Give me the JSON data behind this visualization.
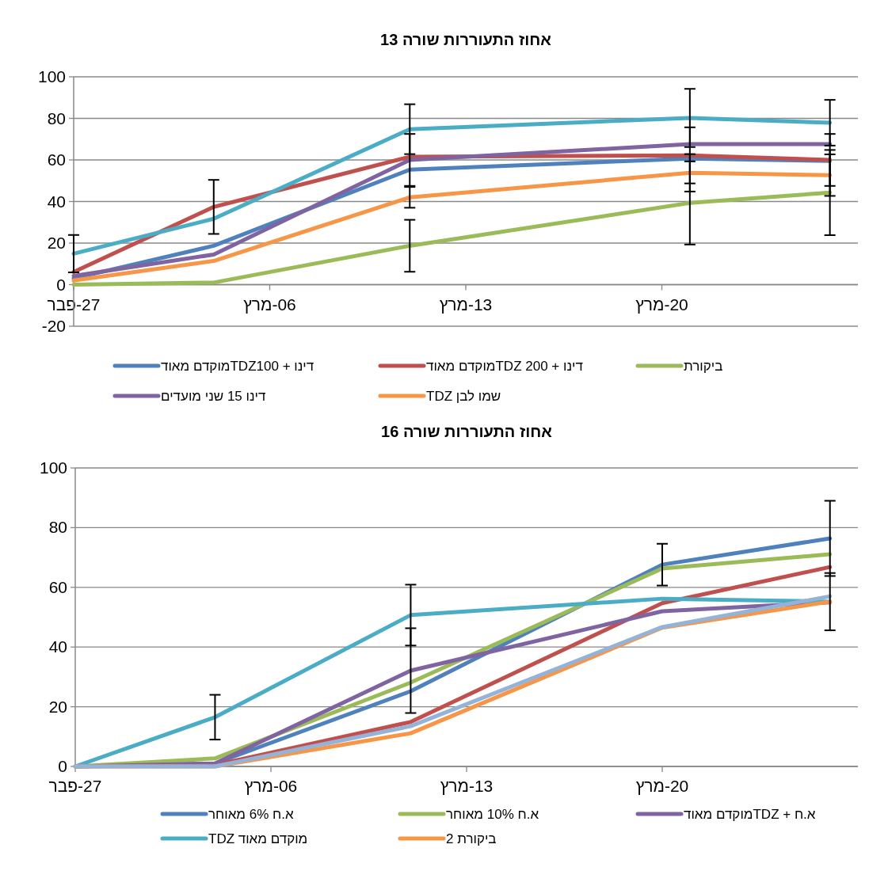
{
  "chart_data": [
    {
      "type": "line",
      "title": "אחוז התעוררות שורה 13",
      "x": [
        "--02-27",
        "--03-04",
        "--03-11",
        "--03-21",
        "--03-26"
      ],
      "xlim": [
        "--02-27",
        "--03-27"
      ],
      "xticks": [
        {
          "value": "--02-27",
          "label": "27-פבר"
        },
        {
          "value": "--03-06",
          "label": "06-מרץ"
        },
        {
          "value": "--03-13",
          "label": "13-מרץ"
        },
        {
          "value": "--03-20",
          "label": "20-מרץ"
        }
      ],
      "ylim": [
        -20,
        100
      ],
      "yticks": [
        -20,
        0,
        20,
        40,
        60,
        80,
        100
      ],
      "grid": "y",
      "legend": "bottom",
      "series": [
        {
          "name": "דינו + TDZ100מוקדם מאוד",
          "color": "#4f81bd",
          "values": [
            3,
            18.7,
            55.3,
            60.7,
            59.5
          ]
        },
        {
          "name": "דינו + TDZ 200מוקדם מאוד",
          "color": "#c0504d",
          "values": [
            6.1,
            37.4,
            61.5,
            62.2,
            60
          ],
          "errors": [
            null,
            13,
            null,
            13.5,
            12.5
          ]
        },
        {
          "name": "ביקורת",
          "color": "#9bbb59",
          "values": [
            0,
            1,
            18.7,
            39.3,
            44.3
          ],
          "errors": [
            null,
            null,
            12.5,
            20,
            20.5
          ]
        },
        {
          "name": "דינו 15 שני מועדים",
          "color": "#8064a2",
          "values": [
            4.2,
            14.5,
            60,
            67.6,
            67.6
          ],
          "errors": [
            null,
            null,
            12.5,
            null,
            null
          ]
        },
        {
          "color": "#4bacc6",
          "values": [
            14.9,
            31.7,
            74.8,
            80.2,
            77.9
          ],
          "errors": [
            9,
            null,
            12,
            14,
            11
          ]
        },
        {
          "name": "שמו לבן TDZ",
          "color": "#f79646",
          "values": [
            2,
            11.4,
            42,
            53.8,
            52.7
          ],
          "errors": [
            null,
            null,
            5,
            9,
            10
          ]
        }
      ]
    },
    {
      "type": "line",
      "title": "אחוז התעוררות שורה 16",
      "x": [
        "--02-27",
        "--03-04",
        "--03-11",
        "--03-20",
        "--03-26"
      ],
      "xlim": [
        "--02-27",
        "--03-27"
      ],
      "xticks": [
        {
          "value": "--02-27",
          "label": "27-פבר"
        },
        {
          "value": "--03-06",
          "label": "06-מרץ"
        },
        {
          "value": "--03-13",
          "label": "13-מרץ"
        },
        {
          "value": "--03-20",
          "label": "20-מרץ"
        }
      ],
      "ylim": [
        0,
        100
      ],
      "yticks": [
        0,
        20,
        40,
        60,
        80,
        100
      ],
      "grid": "y",
      "legend": "bottom",
      "series": [
        {
          "name": "א.ח 6% מאוחר",
          "color": "#4f81bd",
          "values": [
            0,
            1,
            25.2,
            67.6,
            76.4
          ],
          "errors": [
            null,
            null,
            null,
            7,
            12.6
          ]
        },
        {
          "color": "#c0504d",
          "values": [
            0,
            0.5,
            14.9,
            54.7,
            66.8
          ]
        },
        {
          "name": "א.ח 10% מאוחר",
          "color": "#9bbb59",
          "values": [
            0,
            2.7,
            28.1,
            66.3,
            71.1
          ]
        },
        {
          "name": "א.ח + TDZמוקדם מאוד",
          "color": "#8064a2",
          "values": [
            0,
            1,
            32.1,
            52,
            55
          ],
          "errors": [
            null,
            null,
            14.2,
            null,
            null
          ]
        },
        {
          "name": "מוקדם מאוד TDZ",
          "color": "#4bacc6",
          "values": [
            0,
            16.5,
            50.7,
            56.2,
            55.2
          ],
          "errors": [
            null,
            7.5,
            10.2,
            null,
            null
          ]
        },
        {
          "name": "ביקורת 2",
          "color": "#f79646",
          "values": [
            0,
            0,
            11.1,
            46.5,
            55.2
          ],
          "errors": [
            null,
            null,
            null,
            null,
            9.6
          ]
        },
        {
          "color": "#95b3d7",
          "values": [
            0,
            0,
            13.5,
            46.7,
            57
          ]
        }
      ]
    }
  ]
}
